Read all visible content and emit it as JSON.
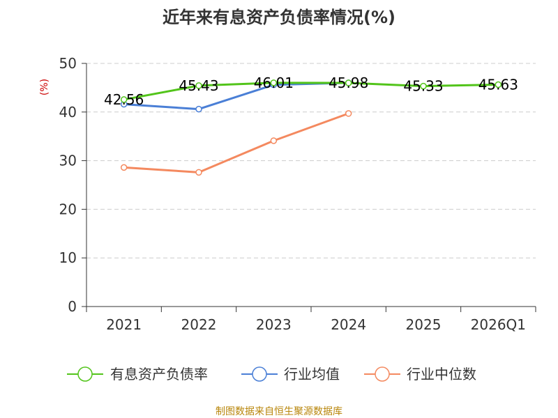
{
  "chart_data": {
    "type": "line",
    "title": "近年来有息资产负债率情况(%)",
    "ylabel": "(%)",
    "xlabel": "",
    "categories": [
      "2021",
      "2022",
      "2023",
      "2024",
      "2025",
      "2026Q1"
    ],
    "yticks": [
      "0",
      "10",
      "20",
      "30",
      "40",
      "50"
    ],
    "ylim": [
      0,
      50
    ],
    "grid": "horizontal dashed",
    "legend_position": "bottom",
    "series": [
      {
        "name": "有息资产负债率",
        "color": "#52c41a",
        "values": [
          42.56,
          45.43,
          46.01,
          45.98,
          45.33,
          45.63
        ],
        "labels": [
          "42.56",
          "45.43",
          "46.01",
          "45.98",
          "45.33",
          "45.63"
        ]
      },
      {
        "name": "行业均值",
        "color": "#4a7fd6",
        "values": [
          41.6,
          40.6,
          45.6,
          46.0,
          null,
          null
        ]
      },
      {
        "name": "行业中位数",
        "color": "#f4895f",
        "values": [
          28.6,
          27.6,
          34.1,
          39.7,
          null,
          null
        ]
      }
    ],
    "source": "制图数据来自恒生聚源数据库"
  }
}
